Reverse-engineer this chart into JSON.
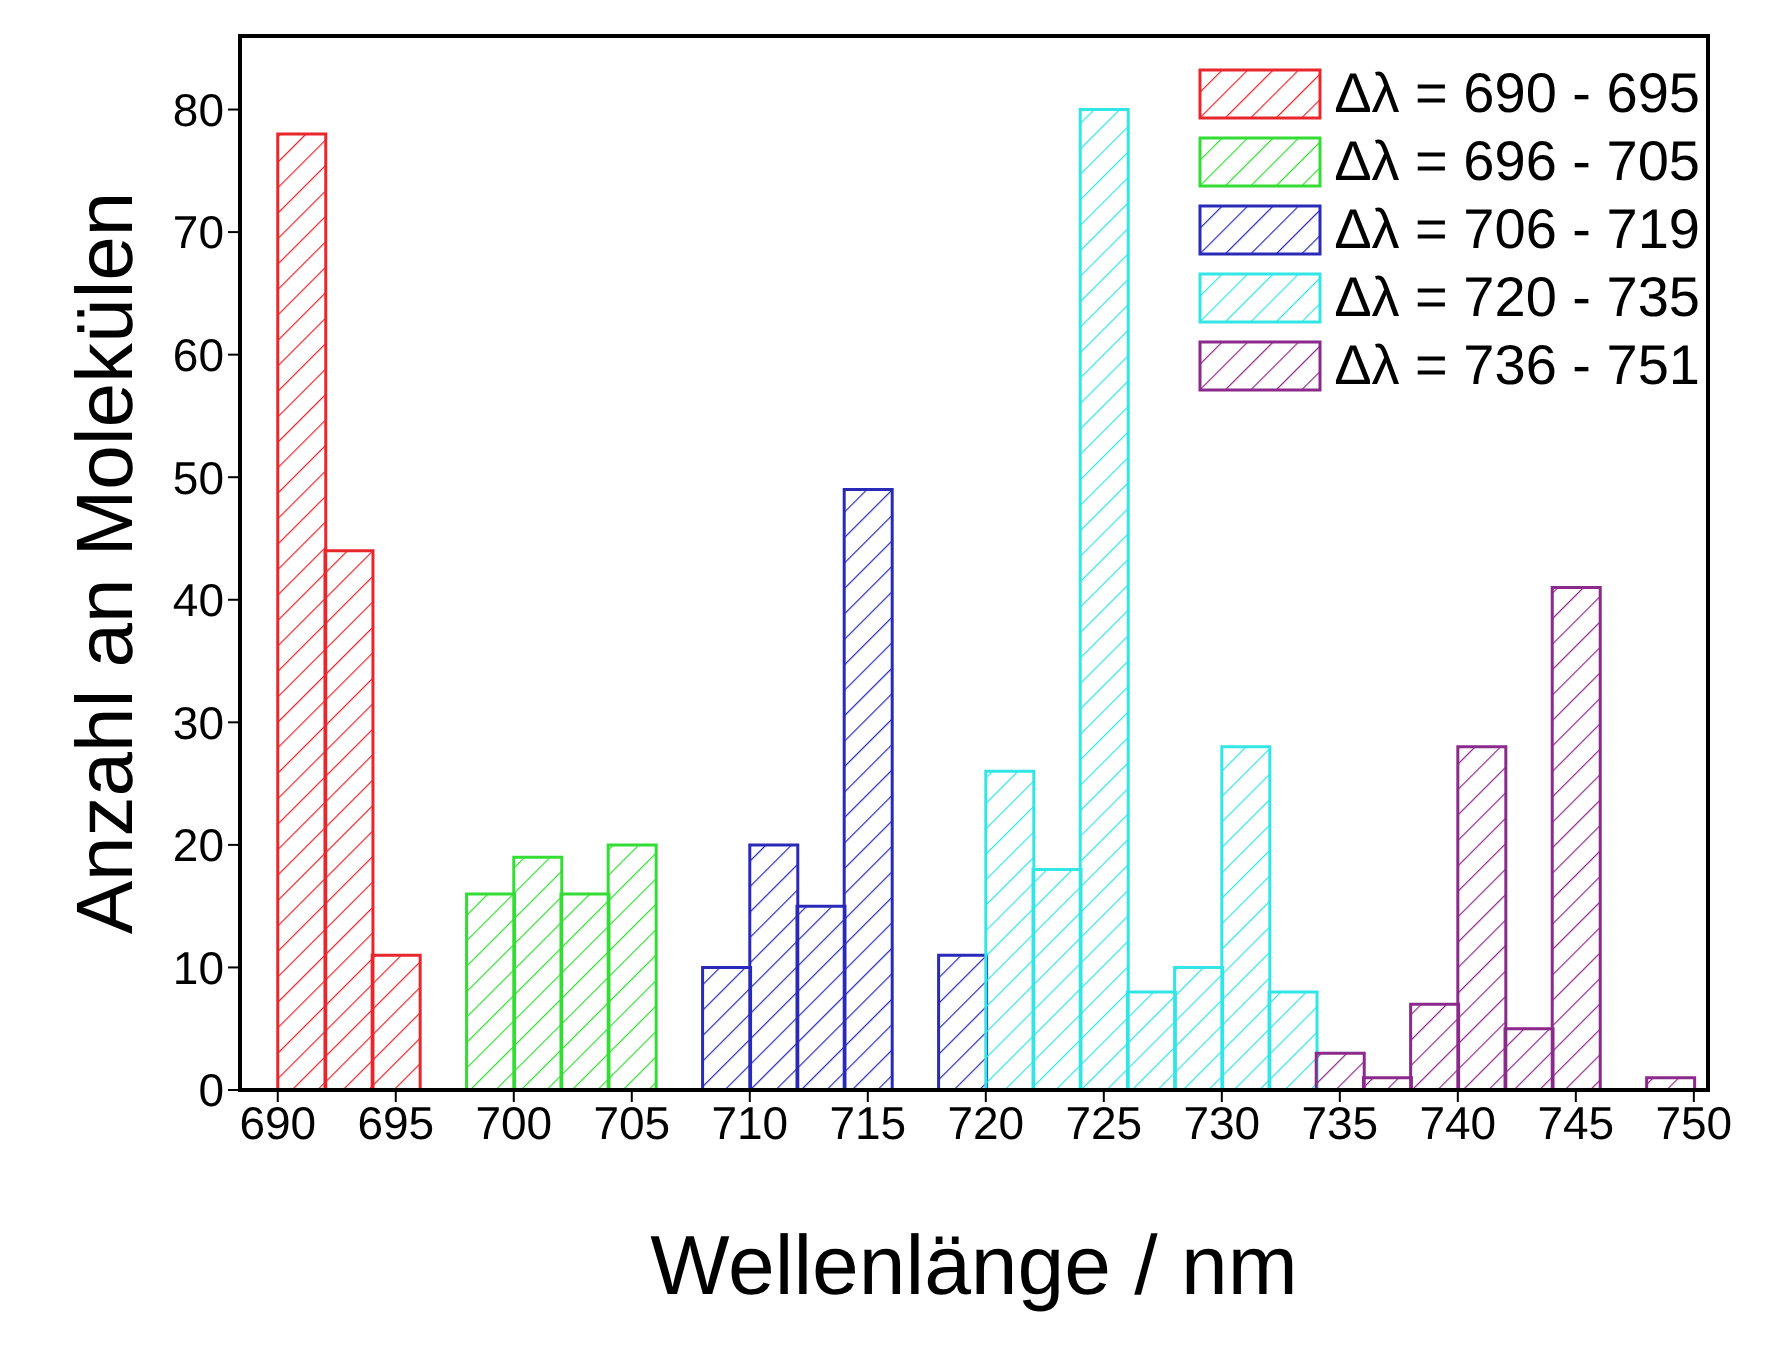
{
  "chart_data": {
    "type": "histogram",
    "xlabel": "Wellenlänge / nm",
    "ylabel": "Anzahl an Molekülen",
    "bins": [
      690,
      692,
      694,
      696,
      698,
      700,
      702,
      704,
      706,
      708,
      710,
      712,
      714,
      716,
      718,
      720,
      722,
      724,
      726,
      728,
      730,
      732,
      734,
      736,
      738,
      740,
      742,
      744,
      746,
      748,
      750
    ],
    "series": [
      {
        "name": "Δλ = 690 - 695",
        "color": "#e8262b",
        "values": [
          78,
          44,
          11,
          null,
          null,
          null,
          null,
          null,
          null,
          null,
          null,
          null,
          null,
          null,
          null,
          null,
          null,
          null,
          null,
          null,
          null,
          null,
          null,
          null,
          null,
          null,
          null,
          null,
          null,
          null
        ]
      },
      {
        "name": "Δλ = 696 - 705",
        "color": "#33dd33",
        "values": [
          null,
          null,
          null,
          null,
          16,
          19,
          16,
          20,
          null,
          null,
          null,
          null,
          null,
          null,
          null,
          null,
          null,
          null,
          null,
          null,
          null,
          null,
          null,
          null,
          null,
          null,
          null,
          null,
          null,
          null
        ]
      },
      {
        "name": "Δλ = 706 - 719",
        "color": "#2a2ab8",
        "values": [
          null,
          null,
          null,
          null,
          null,
          null,
          null,
          null,
          null,
          10,
          20,
          15,
          49,
          null,
          11,
          null,
          null,
          null,
          null,
          null,
          null,
          null,
          null,
          null,
          null,
          null,
          null,
          null,
          null,
          null
        ]
      },
      {
        "name": "Δλ = 720 - 735",
        "color": "#33e6e6",
        "values": [
          null,
          null,
          null,
          null,
          null,
          null,
          null,
          null,
          null,
          null,
          null,
          null,
          null,
          null,
          null,
          26,
          18,
          80,
          8,
          10,
          28,
          8,
          null,
          null,
          null,
          null,
          null,
          null,
          null,
          null
        ]
      },
      {
        "name": "Δλ = 736 - 751",
        "color": "#8b2a8b",
        "values": [
          null,
          null,
          null,
          null,
          null,
          null,
          null,
          null,
          null,
          null,
          null,
          null,
          null,
          null,
          null,
          null,
          null,
          null,
          null,
          null,
          null,
          null,
          3,
          1,
          7,
          28,
          5,
          41,
          null,
          1
        ]
      }
    ],
    "xlim": [
      688.4,
      750.6
    ],
    "xticks": [
      690,
      695,
      700,
      705,
      710,
      715,
      720,
      725,
      730,
      735,
      740,
      745,
      750
    ],
    "ylim": [
      0,
      86
    ],
    "yticks": [
      0,
      10,
      20,
      30,
      40,
      50,
      60,
      70,
      80
    ],
    "legend": "top right"
  }
}
